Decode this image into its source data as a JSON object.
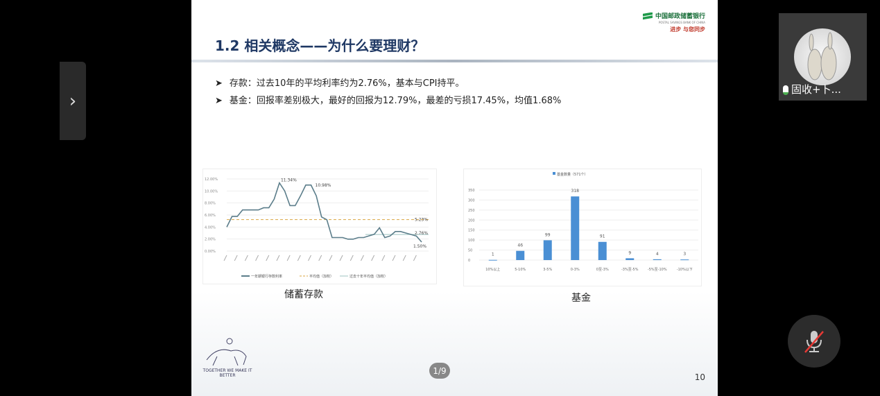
{
  "nav": {
    "next_icon": "›"
  },
  "slide": {
    "logo": {
      "bank_cn": "中国邮政储蓄银行",
      "bank_en": "POSTAL SAVINGS BANK OF CHINA",
      "slogan": "进步 与您同步"
    },
    "title": "1.2 相关概念——为什么要理财？",
    "bullets": [
      "存款：过去10年的平均利率约为2.76%，基本与CPI持平。",
      "基金：回报率差别极大，最好的回报为12.79%，最差的亏损17.45%，均值1.68%"
    ],
    "page_indicator": "1/9",
    "page_number": "10",
    "footer_logo_text": "TOGETHER WE MAKE IT BETTER"
  },
  "chart_data": [
    {
      "type": "line",
      "caption": "储蓄存款",
      "ylim": [
        0,
        12
      ],
      "yticks": [
        "0.00%",
        "2.00%",
        "4.00%",
        "6.00%",
        "8.00%",
        "10.00%",
        "12.00%"
      ],
      "grid": true,
      "legend": "bottom",
      "series": [
        {
          "name": "一年期银行存款利率",
          "color": "#5b7d8a",
          "values": [
            4.0,
            5.76,
            5.76,
            6.84,
            6.84,
            6.84,
            6.84,
            7.2,
            7.2,
            8.64,
            11.34,
            10.0,
            7.56,
            7.56,
            9.18,
            10.98,
            10.98,
            9.18,
            5.67,
            5.22,
            2.25,
            2.25,
            2.25,
            1.98,
            1.98,
            2.25,
            2.25,
            2.52,
            2.79,
            3.87,
            2.25,
            2.5,
            3.25,
            3.25,
            3.0,
            2.75,
            2.5,
            1.5
          ]
        },
        {
          "name": "平均值（加权）",
          "color": "#d9a441",
          "style": "dashed",
          "value": 5.23
        },
        {
          "name": "过去十年平均值（加权）",
          "color": "#9dc3c1",
          "style": "thin",
          "value": 2.76
        }
      ],
      "annotations": [
        "11.34%",
        "10.98%",
        "5.23%",
        "2.76%",
        "1.50%"
      ]
    },
    {
      "type": "bar",
      "caption": "基金",
      "legend_label": "基金数量（571个）",
      "legend": "top",
      "ylim": [
        0,
        350
      ],
      "yticks": [
        "0",
        "50",
        "100",
        "150",
        "200",
        "250",
        "300",
        "350"
      ],
      "grid": true,
      "color": "#4a8fd4",
      "categories": [
        "10%以上",
        "5-10%",
        "3-5%",
        "0-3%",
        "0至-3%",
        "-3%至-5%",
        "-5%至-10%",
        "-10%以下"
      ],
      "values": [
        1,
        46,
        99,
        318,
        91,
        9,
        4,
        3
      ]
    }
  ],
  "video": {
    "name": "固收+卜..."
  }
}
